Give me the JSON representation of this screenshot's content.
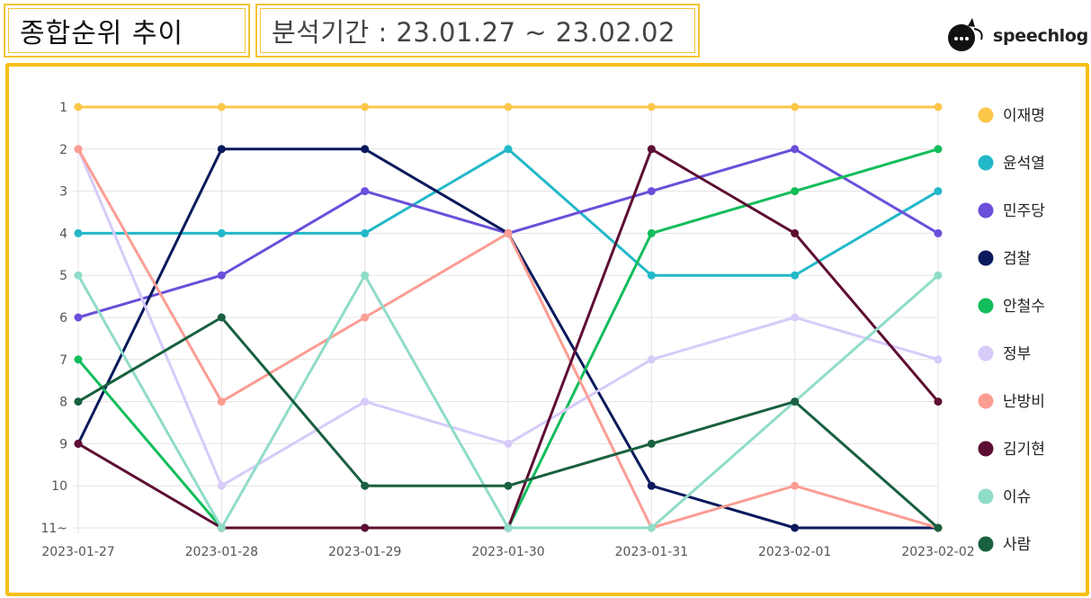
{
  "header": {
    "title": "종합순위 추이",
    "period": "분석기간 : 23.01.27 ~ 23.02.02"
  },
  "logo": {
    "text": "speechlog",
    "icon": "speech-bubble-icon"
  },
  "chart_data": {
    "type": "line",
    "x": [
      "2023-01-27",
      "2023-01-28",
      "2023-01-29",
      "2023-01-30",
      "2023-01-31",
      "2023-02-01",
      "2023-02-02"
    ],
    "y_ticks": [
      "1",
      "2",
      "3",
      "4",
      "5",
      "6",
      "7",
      "8",
      "9",
      "10",
      "11~"
    ],
    "ylim": [
      1,
      11
    ],
    "y_reversed": true,
    "grid": true,
    "legend_position": "right",
    "series": [
      {
        "name": "이재명",
        "color": "#fcc74a",
        "values": [
          1,
          1,
          1,
          1,
          1,
          1,
          1
        ]
      },
      {
        "name": "윤석열",
        "color": "#22b8c8",
        "values": [
          4,
          4,
          4,
          2,
          5,
          5,
          3
        ]
      },
      {
        "name": "민주당",
        "color": "#6b4fdb",
        "values": [
          6,
          5,
          3,
          4,
          3,
          2,
          4
        ]
      },
      {
        "name": "검찰",
        "color": "#0a1a5c",
        "values": [
          9,
          2,
          2,
          4,
          10,
          11,
          11
        ]
      },
      {
        "name": "안철수",
        "color": "#12bd5b",
        "values": [
          7,
          11,
          11,
          11,
          4,
          3,
          2
        ]
      },
      {
        "name": "정부",
        "color": "#d7cbfa",
        "values": [
          2,
          10,
          8,
          9,
          7,
          6,
          7
        ]
      },
      {
        "name": "난방비",
        "color": "#fb9d93",
        "values": [
          2,
          8,
          6,
          4,
          11,
          10,
          11
        ]
      },
      {
        "name": "김기현",
        "color": "#5e0d33",
        "values": [
          9,
          11,
          11,
          11,
          2,
          4,
          8
        ]
      },
      {
        "name": "이슈",
        "color": "#8fdcc9",
        "values": [
          5,
          11,
          5,
          11,
          11,
          8,
          5
        ]
      },
      {
        "name": "사람",
        "color": "#18603f",
        "values": [
          8,
          6,
          10,
          10,
          9,
          8,
          11
        ]
      }
    ]
  }
}
